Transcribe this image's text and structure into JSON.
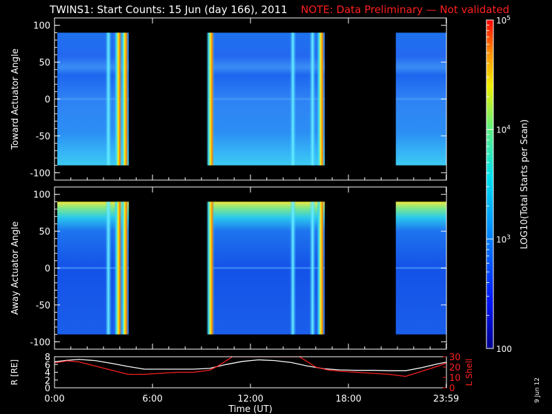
{
  "title": "TWINS1: Start Counts: 15 Jun (day 166), 2011",
  "note": "NOTE: Data Preliminary — Not validated",
  "date_stamp": "9 Jun 12",
  "colors": {
    "note": "#ff2020",
    "background": "#000000",
    "ephem_r": "#ffffff",
    "ephem_l": "#ff2020"
  },
  "chart_data": [
    {
      "type": "heatmap",
      "panel": "top",
      "ylabel": "Toward Actuator Angle",
      "ylim": [
        -110,
        110
      ],
      "yticks": [
        100,
        50,
        0,
        -50,
        -100
      ],
      "data_range_y": [
        -90,
        90
      ],
      "xlim": [
        0,
        24
      ],
      "data_intervals_hours": [
        [
          0.17,
          4.55
        ],
        [
          9.4,
          16.55
        ],
        [
          20.9,
          23.98
        ]
      ],
      "bright_stripes_hours": [
        3.3,
        3.9,
        4.3,
        9.55,
        14.6,
        15.8,
        16.3
      ],
      "colorbar": {
        "label": "LOG10(Total Starts per Scan)",
        "min": 100,
        "max": 100000,
        "scale": "log",
        "ticks": [
          "100",
          "10^3",
          "10^4",
          "10^5"
        ]
      }
    },
    {
      "type": "heatmap",
      "panel": "middle",
      "ylabel": "Away Actuator Angle",
      "ylim": [
        -110,
        110
      ],
      "yticks": [
        100,
        50,
        0,
        -50,
        -100
      ],
      "data_range_y": [
        -90,
        90
      ],
      "xlim": [
        0,
        24
      ],
      "data_intervals_hours": [
        [
          0.17,
          4.55
        ],
        [
          9.4,
          16.55
        ],
        [
          20.9,
          23.98
        ]
      ],
      "bright_stripes_hours": [
        3.3,
        3.9,
        4.3,
        9.55,
        14.6,
        15.8,
        16.3
      ],
      "colorbar": {
        "label": "LOG10(Total Starts per Scan)",
        "min": 100,
        "max": 100000,
        "scale": "log",
        "ticks": [
          "100",
          "10^3",
          "10^4",
          "10^5"
        ]
      }
    },
    {
      "type": "line",
      "panel": "ephemeris",
      "xlabel": "Time (UT)",
      "xlim": [
        0,
        24
      ],
      "xticks": [
        "0:00",
        "6:00",
        "12:00",
        "18:00",
        "23:59"
      ],
      "xtick_hours": [
        0,
        6,
        12,
        18,
        23.98
      ],
      "left_axis": {
        "label": "R [RE]",
        "ylim": [
          0,
          8
        ],
        "ticks": [
          0,
          2,
          4,
          6,
          8
        ]
      },
      "right_axis": {
        "label": "L Shell",
        "ylim": [
          0,
          30
        ],
        "ticks": [
          0,
          10,
          20,
          30
        ]
      },
      "series": [
        {
          "name": "R [RE]",
          "axis": "left",
          "x": [
            0,
            0.8,
            1.5,
            2.5,
            3.5,
            4.5,
            5.5,
            6.5,
            7.5,
            8.5,
            9.5,
            10.5,
            11.5,
            12.5,
            13.5,
            14.5,
            15.5,
            16.5,
            17.5,
            18.5,
            19.5,
            20.5,
            21.5,
            22.5,
            23.5,
            24
          ],
          "y": [
            6.7,
            7.1,
            7.3,
            7.0,
            6.3,
            5.5,
            4.8,
            4.8,
            4.8,
            4.8,
            5.0,
            6.0,
            6.8,
            7.2,
            7.0,
            6.5,
            5.6,
            4.9,
            4.6,
            4.5,
            4.5,
            4.4,
            4.4,
            5.2,
            6.2,
            6.6
          ]
        },
        {
          "name": "L Shell",
          "axis": "right",
          "x": [
            0,
            0.8,
            1.5,
            2.5,
            3.5,
            4.5,
            5.5,
            6.5,
            7.5,
            8.5,
            9.5,
            10.0,
            10.5,
            10.9,
            11.0,
            14.9,
            15.0,
            15.5,
            16.0,
            16.8,
            17.5,
            18.5,
            19.5,
            20.5,
            21.5,
            22.5,
            23.5,
            24
          ],
          "y": [
            24,
            26,
            25,
            21,
            17,
            13,
            13,
            14,
            15,
            15,
            17,
            21,
            26,
            30,
            30,
            30,
            30,
            25,
            20,
            17,
            16,
            15,
            14,
            13,
            11,
            16,
            21,
            24
          ]
        }
      ]
    }
  ]
}
